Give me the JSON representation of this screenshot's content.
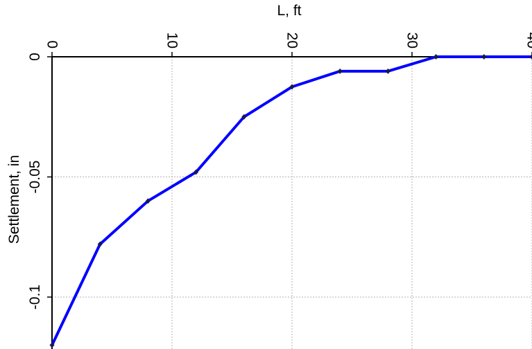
{
  "chart_data": {
    "type": "line",
    "xlabel": "L, ft",
    "ylabel": "Settlement, in",
    "x_ticks": [
      "0",
      "10",
      "20",
      "30",
      "40"
    ],
    "y_ticks": [
      "0",
      "-0.05",
      "-0.1"
    ],
    "xlim": [
      0,
      40
    ],
    "ylim": [
      -0.12,
      0
    ],
    "x_tick_label_rotation": "vertical",
    "grid": true,
    "series": [
      {
        "color": "#0000ff",
        "marker_color": "#1a1a4a",
        "x": [
          0,
          4,
          8,
          12,
          16,
          20,
          24,
          28,
          32,
          36,
          40
        ],
        "y": [
          -0.12,
          -0.078,
          -0.06,
          -0.048,
          -0.025,
          -0.0125,
          -0.006,
          -0.006,
          0,
          0,
          0
        ]
      }
    ]
  }
}
